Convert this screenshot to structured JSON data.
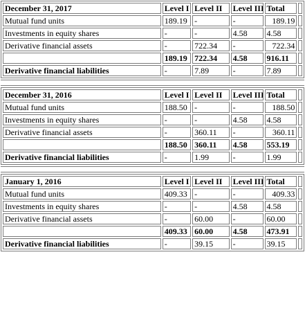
{
  "sections": [
    {
      "date": "December 31, 2017",
      "headers": [
        "Level I",
        "Level II",
        "Level III",
        "Total"
      ],
      "rows": [
        {
          "label": "Mutual fund units",
          "l1": "189.19",
          "l2": "-",
          "l3": "-",
          "total": "189.19"
        },
        {
          "label": "Investments in equity shares",
          "l1": "-",
          "l2": "-",
          "l3": "4.58",
          "total": "4.58"
        },
        {
          "label": "Derivative financial assets",
          "l1": "-",
          "l2": "722.34",
          "l3": "-",
          "total": "722.34"
        }
      ],
      "subtotal": {
        "l1": "189.19",
        "l2": "722.34",
        "l3": "4.58",
        "total": "916.11"
      },
      "liabilities": {
        "label": "Derivative financial liabilities",
        "l1": "-",
        "l2": "7.89",
        "l3": "-",
        "total": "7.89"
      }
    },
    {
      "date": "December 31, 2016",
      "headers": [
        "Level I",
        "Level II",
        "Level III",
        "Total"
      ],
      "rows": [
        {
          "label": "Mutual fund units",
          "l1": "188.50",
          "l2": "-",
          "l3": "-",
          "total": "188.50"
        },
        {
          "label": "Investments in equity shares",
          "l1": "-",
          "l2": "-",
          "l3": "4.58",
          "total": "4.58"
        },
        {
          "label": "Derivative financial assets",
          "l1": "-",
          "l2": "360.11",
          "l3": "-",
          "total": "360.11"
        }
      ],
      "subtotal": {
        "l1": "188.50",
        "l2": "360.11",
        "l3": "4.58",
        "total": "553.19"
      },
      "liabilities": {
        "label": "Derivative financial liabilities",
        "l1": "-",
        "l2": "1.99",
        "l3": "-",
        "total": "1.99"
      }
    },
    {
      "date": "January 1, 2016",
      "headers": [
        "Level I",
        "Level II",
        "Level III",
        "Total"
      ],
      "rows": [
        {
          "label": "Mutual fund units",
          "l1": "409.33",
          "l2": "-",
          "l3": "-",
          "total": "409.33"
        },
        {
          "label": "Investments in equity shares",
          "l1": "-",
          "l2": "-",
          "l3": "4.58",
          "total": "4.58"
        },
        {
          "label": "Derivative financial assets",
          "l1": "-",
          "l2": "60.00",
          "l3": "-",
          "total": "60.00"
        }
      ],
      "subtotal": {
        "l1": "409.33",
        "l2": "60.00",
        "l3": "4.58",
        "total": "473.91"
      },
      "liabilities": {
        "label": "Derivative financial liabilities",
        "l1": "-",
        "l2": "39.15",
        "l3": "-",
        "total": "39.15"
      }
    }
  ]
}
